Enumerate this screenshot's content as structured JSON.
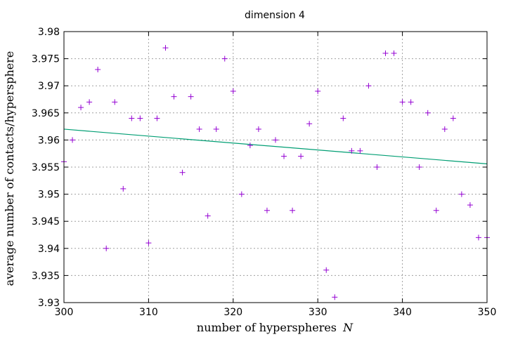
{
  "chart_data": {
    "type": "scatter",
    "title": "dimension 4",
    "xlabel": "number of hyperspheres",
    "xlabel_var": "N",
    "ylabel": "average number of contacts/hypersphere",
    "xlim": [
      300,
      350
    ],
    "ylim": [
      3.93,
      3.98
    ],
    "xticks": [
      300,
      310,
      320,
      330,
      340,
      350
    ],
    "xtick_labels": [
      "300",
      "310",
      "320",
      "330",
      "340",
      "350"
    ],
    "yticks": [
      3.93,
      3.935,
      3.94,
      3.945,
      3.95,
      3.955,
      3.96,
      3.965,
      3.97,
      3.975,
      3.98
    ],
    "ytick_labels": [
      "3.93",
      "3.935",
      "3.94",
      "3.945",
      "3.95",
      "3.955",
      "3.96",
      "3.965",
      "3.97",
      "3.975",
      "3.98"
    ],
    "grid": true,
    "marker": "+",
    "marker_color": "#9400d3",
    "fit_color": "#009e73",
    "points": [
      [
        300,
        3.956
      ],
      [
        301,
        3.96
      ],
      [
        302,
        3.966
      ],
      [
        303,
        3.967
      ],
      [
        304,
        3.973
      ],
      [
        305,
        3.94
      ],
      [
        306,
        3.967
      ],
      [
        307,
        3.951
      ],
      [
        308,
        3.964
      ],
      [
        309,
        3.964
      ],
      [
        310,
        3.941
      ],
      [
        311,
        3.964
      ],
      [
        312,
        3.977
      ],
      [
        313,
        3.968
      ],
      [
        314,
        3.954
      ],
      [
        315,
        3.968
      ],
      [
        316,
        3.962
      ],
      [
        317,
        3.946
      ],
      [
        318,
        3.962
      ],
      [
        319,
        3.975
      ],
      [
        320,
        3.969
      ],
      [
        321,
        3.95
      ],
      [
        322,
        3.959
      ],
      [
        323,
        3.962
      ],
      [
        324,
        3.947
      ],
      [
        325,
        3.96
      ],
      [
        326,
        3.957
      ],
      [
        327,
        3.947
      ],
      [
        328,
        3.957
      ],
      [
        329,
        3.963
      ],
      [
        330,
        3.969
      ],
      [
        331,
        3.936
      ],
      [
        332,
        3.931
      ],
      [
        333,
        3.964
      ],
      [
        334,
        3.958
      ],
      [
        335,
        3.958
      ],
      [
        336,
        3.97
      ],
      [
        337,
        3.955
      ],
      [
        338,
        3.976
      ],
      [
        339,
        3.976
      ],
      [
        340,
        3.967
      ],
      [
        341,
        3.967
      ],
      [
        342,
        3.955
      ],
      [
        343,
        3.965
      ],
      [
        344,
        3.947
      ],
      [
        345,
        3.962
      ],
      [
        346,
        3.964
      ],
      [
        347,
        3.95
      ],
      [
        348,
        3.948
      ],
      [
        349,
        3.942
      ],
      [
        350,
        3.942
      ]
    ],
    "fit_line": [
      [
        300,
        3.962
      ],
      [
        350,
        3.9556
      ]
    ]
  }
}
